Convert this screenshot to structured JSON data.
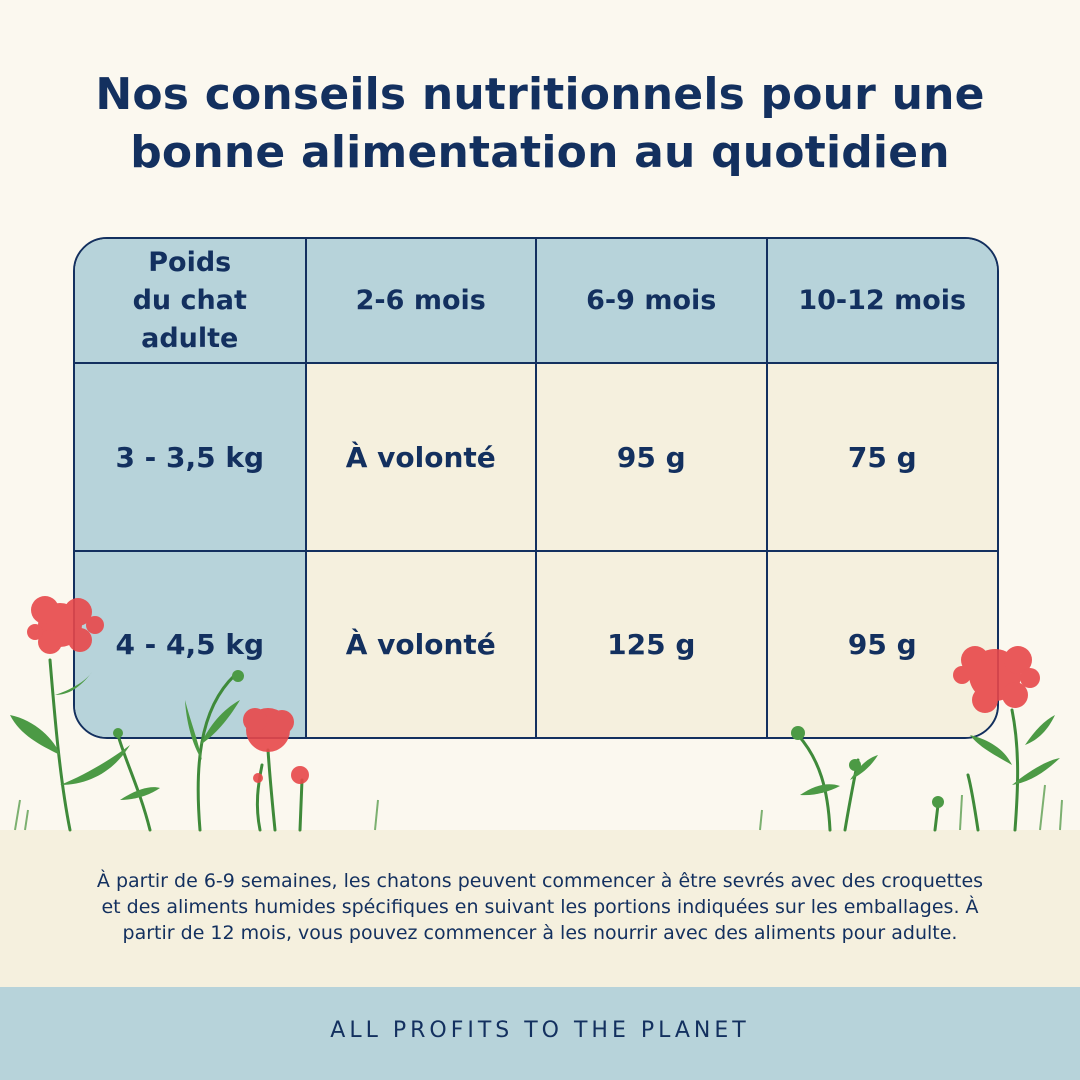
{
  "title": {
    "line1": "Nos conseils nutritionnels pour une",
    "line2": "bonne alimentation au quotidien"
  },
  "table": {
    "header": {
      "weight": [
        "Poids",
        "du chat",
        "adulte"
      ],
      "cols": [
        "2-6 mois",
        "6-9 mois",
        "10-12 mois"
      ]
    },
    "rows": [
      {
        "weight": "3 - 3,5 kg",
        "values": [
          "À volonté",
          "95 g",
          "75 g"
        ]
      },
      {
        "weight": "4 - 4,5 kg",
        "values": [
          "À volonté",
          "125 g",
          "95 g"
        ]
      }
    ]
  },
  "note": {
    "line1": "À partir de 6-9 semaines, les chatons peuvent commencer à être sevrés avec des croquettes",
    "line2": "et des aliments humides spécifiques en suivant les portions indiquées sur les emballages. À",
    "line3": "partir de 12 mois, vous pouvez commencer à les nourrir avec des aliments pour adulte."
  },
  "footer": {
    "text": "ALL PROFITS TO THE PLANET"
  },
  "colors": {
    "navy": "#13305f",
    "blue_cell": "#b7d3da",
    "cream_cell": "#f5f0de",
    "background": "#fbf8ef",
    "flower_red": "#e8484a",
    "leaf_green": "#3f8a3a"
  }
}
